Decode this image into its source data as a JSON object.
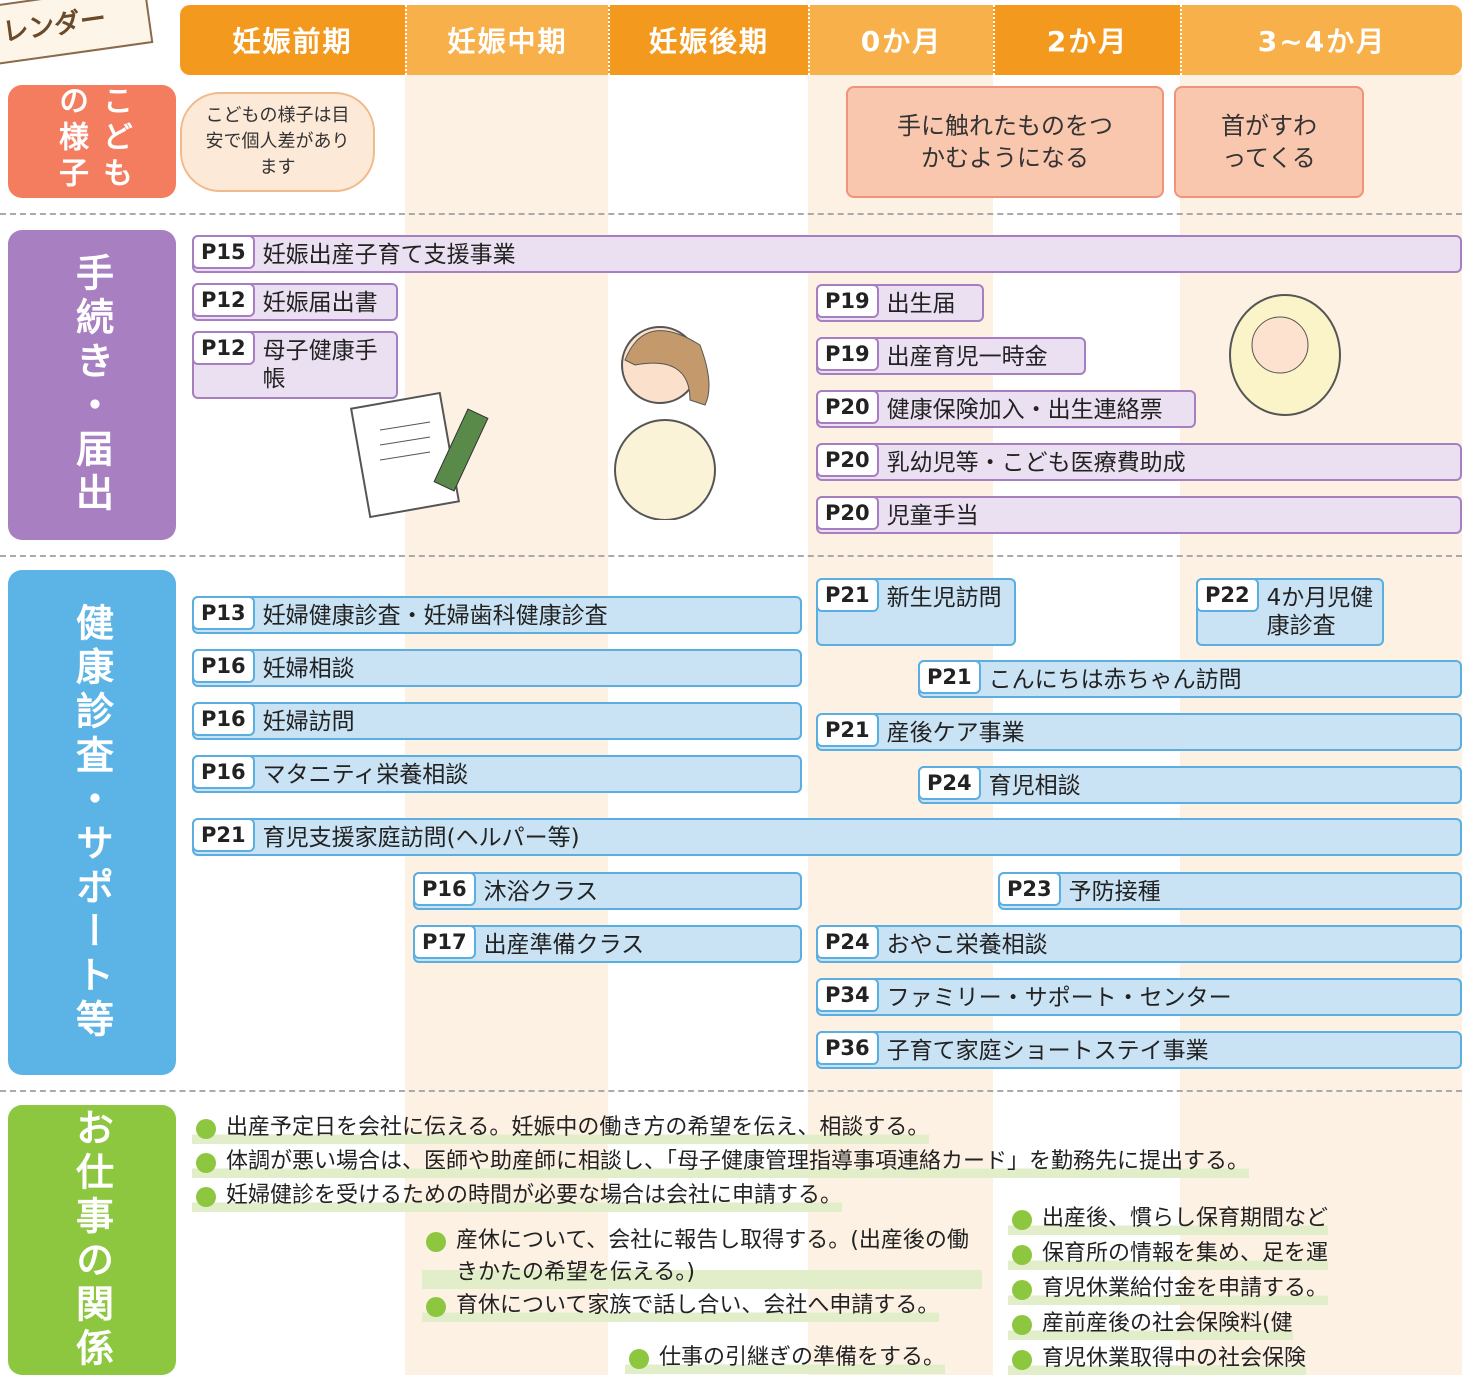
{
  "header": {
    "title": "レンダー",
    "periods": [
      "妊娠前期",
      "妊娠中期",
      "妊娠後期",
      "0か月",
      "2か月",
      "3~4か月"
    ]
  },
  "child": {
    "label": "こどもの様子",
    "note": "こどもの様子は目安で個人差があります",
    "milestones": [
      "手に触れたものをつかむようになる",
      "首がすわってくる"
    ]
  },
  "procedures": {
    "label": "手続き・届出",
    "items": [
      {
        "page": "P15",
        "text": "妊娠出産子育て支援事業"
      },
      {
        "page": "P12",
        "text": "妊娠届出書"
      },
      {
        "page": "P12",
        "text": "母子健康手帳"
      },
      {
        "page": "P19",
        "text": "出生届"
      },
      {
        "page": "P19",
        "text": "出産育児一時金"
      },
      {
        "page": "P20",
        "text": "健康保険加入・出生連絡票"
      },
      {
        "page": "P20",
        "text": "乳幼児等・こども医療費助成"
      },
      {
        "page": "P20",
        "text": "児童手当"
      }
    ]
  },
  "health": {
    "label": "健康診査・サポート等",
    "items": [
      {
        "page": "P13",
        "text": "妊婦健康診査・妊婦歯科健康診査"
      },
      {
        "page": "P16",
        "text": "妊婦相談"
      },
      {
        "page": "P16",
        "text": "妊婦訪問"
      },
      {
        "page": "P16",
        "text": "マタニティ栄養相談"
      },
      {
        "page": "P21",
        "text": "育児支援家庭訪問(ヘルパー等)"
      },
      {
        "page": "P16",
        "text": "沐浴クラス"
      },
      {
        "page": "P17",
        "text": "出産準備クラス"
      },
      {
        "page": "P21",
        "text": "新生児訪問"
      },
      {
        "page": "P22",
        "text": "4か月児健康診査"
      },
      {
        "page": "P21",
        "text": "こんにちは赤ちゃん訪問"
      },
      {
        "page": "P21",
        "text": "産後ケア事業"
      },
      {
        "page": "P24",
        "text": "育児相談"
      },
      {
        "page": "P23",
        "text": "予防接種"
      },
      {
        "page": "P24",
        "text": "おやこ栄養相談"
      },
      {
        "page": "P34",
        "text": "ファミリー・サポート・センター"
      },
      {
        "page": "P36",
        "text": "子育て家庭ショートステイ事業"
      }
    ]
  },
  "work": {
    "label": "お仕事の関係",
    "items": [
      "出産予定日を会社に伝える。妊娠中の働き方の希望を伝え、相談する。",
      "体調が悪い場合は、医師や助産師に相談し、「母子健康管理指導事項連絡カード」を勤務先に提出する。",
      "妊婦健診を受けるための時間が必要な場合は会社に申請する。",
      "産休について、会社に報告し取得する。(出産後の働きかたの希望を伝える。)",
      "育休について家族で話し合い、会社へ申請する。",
      "仕事の引継ぎの準備をする。",
      "出産後、慣らし保育期間など",
      "保育所の情報を集め、足を運",
      "育児休業給付金を申請する。",
      "産前産後の社会保険料(健",
      "育児休業取得中の社会保険"
    ]
  }
}
